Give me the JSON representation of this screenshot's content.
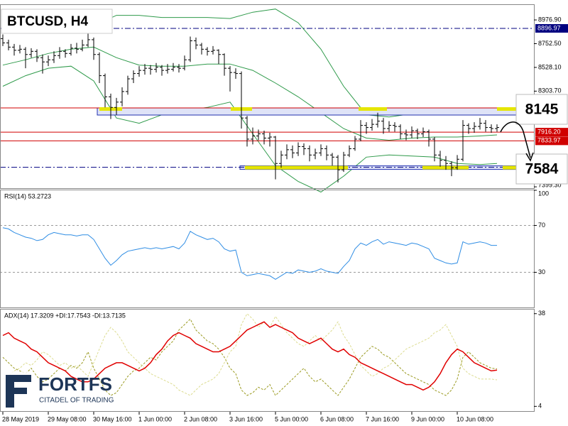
{
  "chart_data": [
    {
      "type": "ohlc",
      "title": "BTCUSD, H4",
      "color": "#000000",
      "categories": [
        "28 May 2019",
        null,
        null,
        null,
        null,
        null,
        null,
        null,
        "29 May 08:00",
        null,
        null,
        null,
        null,
        null,
        null,
        null,
        "30 May 16:00",
        null,
        null,
        null,
        null,
        null,
        null,
        null,
        "1 Jun 00:00",
        null,
        null,
        null,
        null,
        null,
        null,
        null,
        "2 Jun 08:00",
        null,
        null,
        null,
        null,
        null,
        null,
        null,
        "3 Jun 16:00",
        null,
        null,
        null,
        null,
        null,
        null,
        null,
        "5 Jun 00:00",
        null,
        null,
        null,
        null,
        null,
        null,
        null,
        "6 Jun 08:00",
        null,
        null,
        null,
        null,
        null,
        null,
        null,
        "7 Jun 16:00",
        null,
        null,
        null,
        null,
        null,
        null,
        null,
        "9 Jun 00:00",
        null,
        null,
        null,
        null,
        null,
        null,
        null,
        "10 Jun 08:00",
        null,
        null,
        null,
        null,
        null,
        null,
        null
      ],
      "open": [
        8800,
        8760,
        8720,
        8690,
        8700,
        8650,
        8680,
        8620,
        8580,
        8600,
        8640,
        8680,
        8660,
        8710,
        8700,
        8740,
        8790,
        8650,
        8450,
        8250,
        8150,
        8200,
        8300,
        8420,
        8470,
        8500,
        8520,
        8510,
        8530,
        8500,
        8510,
        8530,
        8520,
        8600,
        8780,
        8740,
        8700,
        8680,
        8690,
        8650,
        8520,
        8480,
        8470,
        8050,
        7850,
        7880,
        7900,
        7860,
        7870,
        7620,
        7700,
        7750,
        7720,
        7780,
        7760,
        7700,
        7720,
        7760,
        7700,
        7680,
        7560,
        7700,
        7760,
        7850,
        7980,
        7960,
        7990,
        8020,
        7950,
        7980,
        7970,
        7900,
        7890,
        7930,
        7900,
        7920,
        7850,
        7700,
        7650,
        7620,
        7580,
        7660,
        7980,
        7950,
        7970,
        8000,
        7960,
        7950
      ],
      "high": [
        8840,
        8790,
        8750,
        8740,
        8720,
        8710,
        8700,
        8650,
        8640,
        8680,
        8720,
        8700,
        8750,
        8760,
        8790,
        8880,
        8810,
        8670,
        8470,
        8280,
        8240,
        8340,
        8450,
        8500,
        8540,
        8560,
        8550,
        8570,
        8550,
        8560,
        8570,
        8560,
        8640,
        8820,
        8810,
        8760,
        8720,
        8730,
        8700,
        8660,
        8540,
        8520,
        8490,
        8070,
        7960,
        7940,
        7930,
        7910,
        7880,
        7740,
        7800,
        7790,
        7820,
        7810,
        7790,
        7760,
        7800,
        7790,
        7720,
        7700,
        7730,
        7790,
        7880,
        8030,
        8010,
        8040,
        8100,
        8050,
        8020,
        8010,
        7990,
        7940,
        7970,
        7950,
        7960,
        7940,
        7870,
        7740,
        7690,
        7640,
        7700,
        8030,
        8000,
        8010,
        8050,
        8030,
        7990,
        7990
      ],
      "low": [
        8730,
        8690,
        8640,
        8660,
        8520,
        8620,
        8580,
        8470,
        8540,
        8570,
        8610,
        8620,
        8640,
        8660,
        8680,
        8720,
        8600,
        8380,
        8150,
        8040,
        8080,
        8160,
        8270,
        8380,
        8440,
        8460,
        8460,
        8480,
        8450,
        8470,
        8490,
        8480,
        8500,
        8580,
        8700,
        8650,
        8640,
        8650,
        8560,
        8450,
        8300,
        8420,
        7950,
        7780,
        7800,
        7840,
        7800,
        7780,
        7470,
        7580,
        7660,
        7670,
        7690,
        7700,
        7640,
        7660,
        7690,
        7650,
        7600,
        7440,
        7540,
        7680,
        7740,
        7830,
        7900,
        7930,
        7960,
        7900,
        7920,
        7920,
        7850,
        7840,
        7860,
        7850,
        7870,
        7780,
        7640,
        7590,
        7560,
        7500,
        7560,
        7640,
        7900,
        7910,
        7940,
        7920,
        7910,
        7920
      ],
      "close": [
        8760,
        8720,
        8690,
        8700,
        8650,
        8680,
        8620,
        8580,
        8600,
        8640,
        8680,
        8660,
        8710,
        8700,
        8740,
        8790,
        8650,
        8450,
        8250,
        8150,
        8200,
        8300,
        8420,
        8470,
        8500,
        8520,
        8510,
        8530,
        8500,
        8510,
        8530,
        8520,
        8600,
        8780,
        8740,
        8700,
        8680,
        8690,
        8650,
        8520,
        8480,
        8470,
        8050,
        7850,
        7880,
        7900,
        7860,
        7870,
        7620,
        7700,
        7750,
        7720,
        7780,
        7760,
        7700,
        7720,
        7760,
        7700,
        7680,
        7560,
        7700,
        7760,
        7850,
        7980,
        7960,
        7990,
        8020,
        7950,
        7980,
        7970,
        7900,
        7890,
        7930,
        7900,
        7920,
        7850,
        7700,
        7650,
        7620,
        7580,
        7660,
        7980,
        7950,
        7970,
        8000,
        7960,
        7950,
        7960
      ],
      "bands": {
        "color": "#2e9a4a",
        "x": [
          0,
          4,
          8,
          12,
          16,
          20,
          24,
          28,
          32,
          36,
          40,
          44,
          48,
          52,
          56,
          60,
          64,
          68,
          72,
          76,
          80,
          84,
          87
        ],
        "upper": [
          8900,
          8880,
          8860,
          8880,
          8920,
          9020,
          9020,
          9000,
          9000,
          9000,
          8990,
          9050,
          9080,
          8950,
          8700,
          8350,
          8080,
          8060,
          8090,
          8100,
          8120,
          8130,
          8130
        ],
        "middle": [
          8550,
          8600,
          8660,
          8700,
          8720,
          8620,
          8550,
          8540,
          8540,
          8560,
          8560,
          8500,
          8380,
          8250,
          8100,
          7950,
          7860,
          7840,
          7860,
          7870,
          7870,
          7880,
          7890
        ],
        "lower": [
          8350,
          8450,
          8520,
          8540,
          8400,
          8050,
          8000,
          8080,
          8120,
          8150,
          8200,
          7900,
          7600,
          7450,
          7350,
          7500,
          7680,
          7700,
          7690,
          7680,
          7620,
          7610,
          7620
        ]
      },
      "ylim": [
        7380,
        9125
      ],
      "yticks": [
        {
          "value": 8976.9,
          "label": "8976.90"
        },
        {
          "value": 8752.5,
          "label": "8752.50"
        },
        {
          "value": 8528.1,
          "label": "8528.10"
        },
        {
          "value": 8303.7,
          "label": "8303.70"
        },
        {
          "value": 7399.3,
          "label": "7399.30"
        }
      ],
      "hlines": [
        {
          "value": 8896.97,
          "label": "8896.97",
          "color": "#000080",
          "style": "dashdot"
        },
        {
          "value": 7916.2,
          "label": "7916.20",
          "color": "#d00000",
          "style": "solid"
        },
        {
          "value": 7833.97,
          "label": "7833.97",
          "color": "#d00000",
          "style": "solid"
        }
      ],
      "levels": [
        {
          "value": 8145,
          "color": "#d00000",
          "style": "solid"
        },
        {
          "value": 7584,
          "color": "#000080",
          "style": "dashdot"
        }
      ]
    },
    {
      "type": "line",
      "title": "RSI(14) 53.2723",
      "grid": true,
      "series": [
        {
          "color": "#2f8de4",
          "values": [
            68,
            67,
            64,
            62,
            60,
            59,
            57,
            58,
            62,
            64,
            63,
            62,
            62,
            61,
            62,
            62,
            58,
            50,
            42,
            36,
            40,
            45,
            48,
            49,
            50,
            51,
            50,
            51,
            50,
            51,
            52,
            50,
            55,
            65,
            62,
            60,
            58,
            59,
            56,
            50,
            48,
            49,
            30,
            27,
            28,
            29,
            28,
            27,
            24,
            27,
            30,
            29,
            32,
            31,
            30,
            31,
            33,
            31,
            30,
            29,
            35,
            40,
            50,
            55,
            53,
            56,
            58,
            54,
            56,
            55,
            54,
            53,
            55,
            54,
            52,
            50,
            42,
            40,
            38,
            37,
            38,
            56,
            54,
            55,
            56,
            55,
            53,
            53
          ]
        }
      ],
      "ylim": [
        0,
        100
      ],
      "yticks": [
        100,
        70,
        30
      ]
    },
    {
      "type": "line",
      "title": "ADX(14) 17.3209 +DI:17.7543 -DI:13.7135",
      "grid": false,
      "series": [
        {
          "color": "#9a9a20",
          "dash": "3,2",
          "values": [
            22,
            20,
            18,
            17,
            16,
            18,
            15,
            13,
            14,
            16,
            18,
            17,
            19,
            18,
            20,
            24,
            18,
            14,
            10,
            8,
            9,
            12,
            15,
            17,
            18,
            20,
            22,
            21,
            24,
            26,
            28,
            32,
            34,
            36,
            32,
            30,
            28,
            27,
            25,
            22,
            18,
            16,
            10,
            8,
            9,
            11,
            10,
            12,
            8,
            10,
            12,
            14,
            16,
            18,
            15,
            13,
            14,
            12,
            10,
            8,
            11,
            14,
            18,
            22,
            24,
            26,
            25,
            23,
            22,
            20,
            18,
            16,
            15,
            14,
            13,
            12,
            10,
            9,
            8,
            10,
            14,
            22,
            24,
            22,
            20,
            19,
            18,
            17.7543
          ]
        },
        {
          "color": "#dcdc90",
          "dash": "3,2",
          "values": [
            14,
            15,
            17,
            18,
            20,
            19,
            21,
            24,
            23,
            21,
            19,
            20,
            18,
            19,
            17,
            15,
            20,
            25,
            30,
            33,
            31,
            28,
            24,
            22,
            20,
            18,
            16,
            15,
            14,
            13,
            12,
            10,
            9,
            8,
            10,
            12,
            13,
            14,
            16,
            20,
            24,
            26,
            34,
            38,
            36,
            33,
            35,
            33,
            37,
            34,
            31,
            29,
            27,
            26,
            28,
            30,
            28,
            30,
            32,
            35,
            30,
            27,
            23,
            19,
            17,
            15,
            16,
            18,
            19,
            21,
            23,
            25,
            26,
            27,
            28,
            29,
            31,
            32,
            34,
            30,
            26,
            18,
            16,
            15,
            14,
            14,
            14,
            13.7135
          ]
        },
        {
          "color": "#e00000",
          "width": 1.5,
          "values": [
            30,
            31,
            29,
            28,
            27,
            25,
            24,
            22,
            20,
            19,
            18,
            17,
            15,
            14,
            13,
            13,
            14,
            16,
            18,
            19,
            20,
            20,
            19,
            18,
            17,
            18,
            20,
            23,
            25,
            28,
            30,
            31,
            30,
            29,
            27,
            26,
            25,
            24,
            24,
            25,
            26,
            28,
            30,
            32,
            33,
            34,
            35,
            33,
            34,
            33,
            32,
            31,
            29,
            28,
            27,
            28,
            29,
            27,
            25,
            24,
            25,
            23,
            22,
            20,
            19,
            18,
            17,
            16,
            15,
            14,
            13,
            12,
            12,
            11,
            10,
            11,
            13,
            16,
            20,
            23,
            25,
            24,
            22,
            20,
            19,
            18,
            17,
            17.3209
          ]
        }
      ],
      "ylim": [
        2,
        39.5
      ],
      "yticks": [
        38,
        4
      ]
    }
  ],
  "logo": {
    "name": "FORTFS",
    "tagline": "CITADEL OF TRADING"
  }
}
